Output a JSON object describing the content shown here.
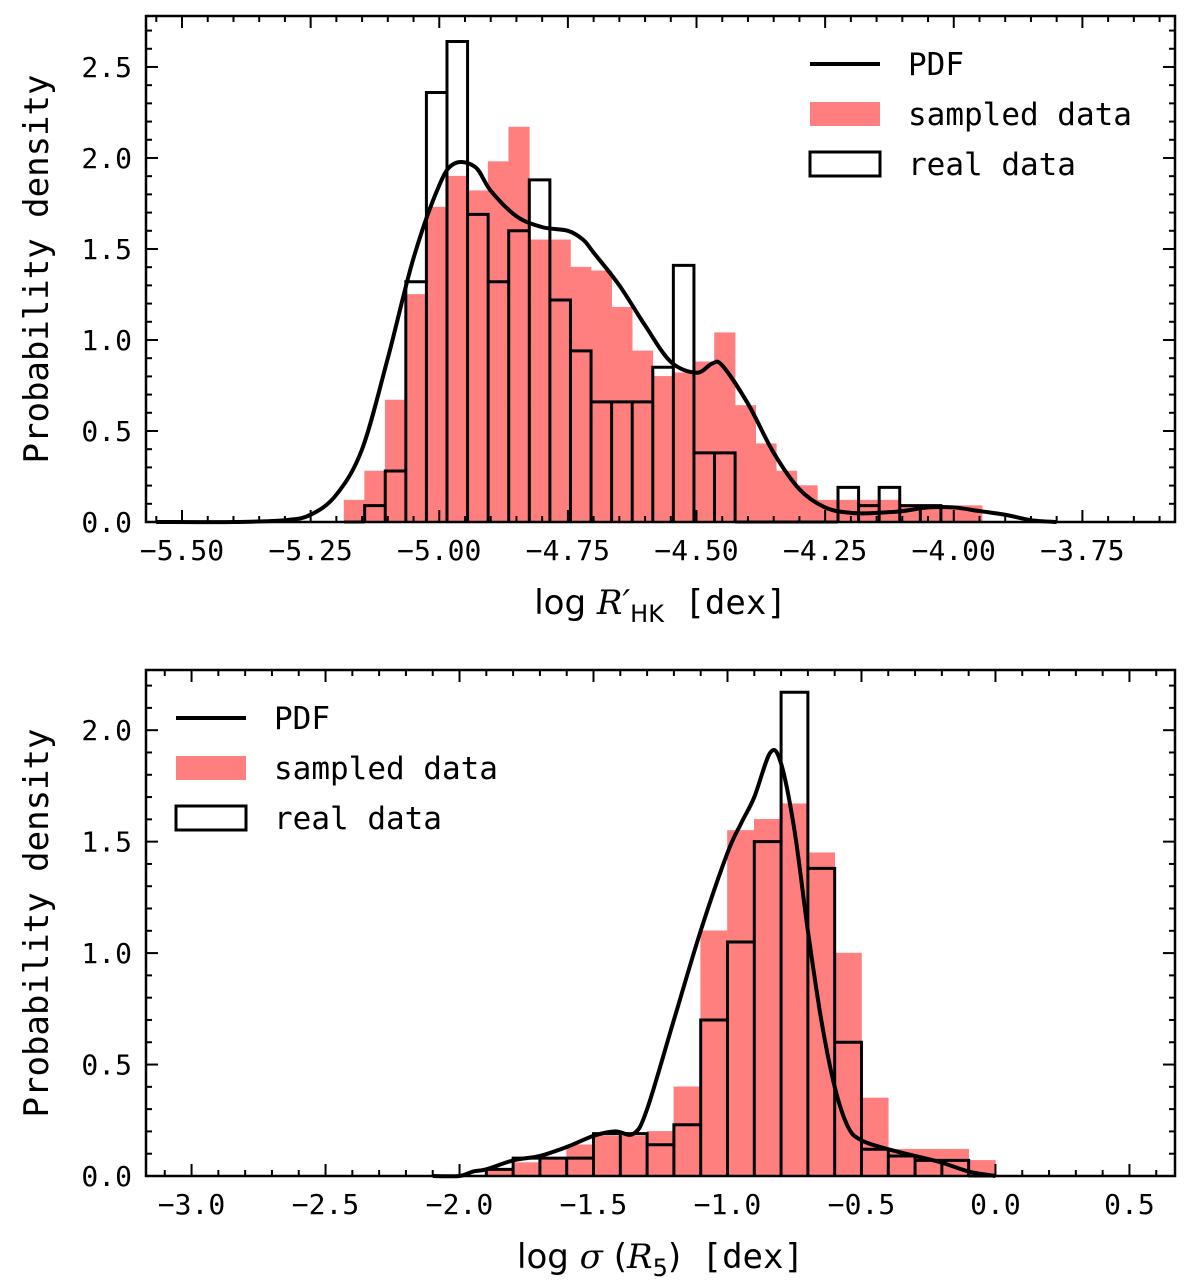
{
  "chart_data": [
    {
      "type": "histogram",
      "xlabel_prefix": "log ",
      "xlabel_math": "R′",
      "xlabel_sub": "HK",
      "xlabel_suffix": "  [dex]",
      "ylabel": "Probability density",
      "xlim": [
        -5.57,
        -3.57
      ],
      "ylim": [
        0,
        2.78
      ],
      "xticks": [
        -5.5,
        -5.25,
        -5.0,
        -4.75,
        -4.5,
        -4.25,
        -4.0,
        -3.75
      ],
      "xtick_labels": [
        "−5.50",
        "−5.25",
        "−5.00",
        "−4.75",
        "−4.50",
        "−4.25",
        "−4.00",
        "−3.75"
      ],
      "yticks": [
        0.0,
        0.5,
        1.0,
        1.5,
        2.0,
        2.5
      ],
      "ytick_labels": [
        "0.0",
        "0.5",
        "1.0",
        "1.5",
        "2.0",
        "2.5"
      ],
      "legend_location": "top-right",
      "legend": {
        "pdf": "PDF",
        "sampled": "sampled data",
        "real": "real data"
      },
      "colors": {
        "sampled": "#ff7f7f",
        "outline": "#000000"
      },
      "bin_start": -5.185,
      "bin_width": 0.04,
      "sampled_values": [
        0.12,
        0.28,
        0.67,
        1.25,
        1.73,
        1.9,
        1.82,
        1.98,
        2.17,
        1.55,
        1.55,
        1.4,
        1.38,
        1.18,
        0.94,
        0.8,
        0.82,
        0.88,
        1.04,
        0.64,
        0.43,
        0.28,
        0.2,
        0.12,
        0.12,
        0.12,
        0.12,
        0.09,
        0.09,
        0.09,
        0.09
      ],
      "real_values": [
        0.0,
        0.09,
        0.28,
        1.32,
        2.36,
        2.64,
        1.69,
        1.32,
        1.6,
        1.88,
        1.22,
        0.94,
        0.66,
        0.66,
        0.66,
        0.85,
        1.41,
        0.38,
        0.38,
        0.0,
        0.0,
        0.0,
        0.0,
        0.0,
        0.19,
        0.09,
        0.19,
        0.09,
        0.09
      ],
      "pdf_x": [
        -5.55,
        -5.4,
        -5.3,
        -5.25,
        -5.2,
        -5.15,
        -5.1,
        -5.05,
        -5.0,
        -4.97,
        -4.93,
        -4.9,
        -4.85,
        -4.8,
        -4.75,
        -4.72,
        -4.7,
        -4.65,
        -4.6,
        -4.55,
        -4.5,
        -4.47,
        -4.45,
        -4.4,
        -4.35,
        -4.3,
        -4.25,
        -4.2,
        -4.15,
        -4.1,
        -4.05,
        -4.0,
        -3.95,
        -3.9,
        -3.85,
        -3.8
      ],
      "pdf_y": [
        0.0,
        0.0,
        0.01,
        0.04,
        0.15,
        0.4,
        0.9,
        1.45,
        1.85,
        1.97,
        1.95,
        1.82,
        1.68,
        1.62,
        1.6,
        1.55,
        1.48,
        1.3,
        1.08,
        0.88,
        0.82,
        0.87,
        0.86,
        0.65,
        0.38,
        0.18,
        0.08,
        0.05,
        0.05,
        0.06,
        0.08,
        0.08,
        0.06,
        0.04,
        0.01,
        0.0
      ]
    },
    {
      "type": "histogram",
      "xlabel_prefix": "log ",
      "xlabel_math": "σ",
      "xlabel_paren_open": " (",
      "xlabel_math2": "R",
      "xlabel_sub": "5",
      "xlabel_paren_close": ")",
      "xlabel_suffix": "  [dex]",
      "ylabel": "Probability density",
      "xlim": [
        -3.17,
        0.67
      ],
      "ylim": [
        0,
        2.27
      ],
      "xticks": [
        -3.0,
        -2.5,
        -2.0,
        -1.5,
        -1.0,
        -0.5,
        0.0,
        0.5
      ],
      "xtick_labels": [
        "−3.0",
        "−2.5",
        "−2.0",
        "−1.5",
        "−1.0",
        "−0.5",
        "0.0",
        "0.5"
      ],
      "yticks": [
        0.0,
        0.5,
        1.0,
        1.5,
        2.0
      ],
      "ytick_labels": [
        "0.0",
        "0.5",
        "1.0",
        "1.5",
        "2.0"
      ],
      "legend_location": "top-left",
      "legend": {
        "pdf": "PDF",
        "sampled": "sampled data",
        "real": "real data"
      },
      "colors": {
        "sampled": "#ff7f7f",
        "outline": "#000000"
      },
      "bin_start": -1.9,
      "bin_width": 0.1,
      "sampled_values": [
        0.03,
        0.06,
        0.08,
        0.14,
        0.18,
        0.18,
        0.2,
        0.4,
        1.1,
        1.55,
        1.6,
        1.67,
        1.45,
        1.0,
        0.35,
        0.12,
        0.12,
        0.12,
        0.07
      ],
      "real_values": [
        0.03,
        0.08,
        0.08,
        0.08,
        0.19,
        0.19,
        0.14,
        0.23,
        0.7,
        1.05,
        1.5,
        2.17,
        1.38,
        0.6,
        0.12,
        0.09,
        0.07,
        0.07,
        0.0
      ],
      "pdf_x": [
        -2.1,
        -2.0,
        -1.95,
        -1.9,
        -1.8,
        -1.7,
        -1.6,
        -1.5,
        -1.42,
        -1.35,
        -1.3,
        -1.2,
        -1.1,
        -1.0,
        -0.95,
        -0.9,
        -0.84,
        -0.8,
        -0.75,
        -0.7,
        -0.65,
        -0.6,
        -0.55,
        -0.5,
        -0.4,
        -0.3,
        -0.2,
        -0.1,
        0.0
      ],
      "pdf_y": [
        0.0,
        0.0,
        0.02,
        0.03,
        0.07,
        0.09,
        0.13,
        0.18,
        0.2,
        0.19,
        0.3,
        0.7,
        1.1,
        1.45,
        1.58,
        1.7,
        1.9,
        1.85,
        1.55,
        1.1,
        0.7,
        0.4,
        0.22,
        0.16,
        0.12,
        0.09,
        0.06,
        0.02,
        0.0
      ]
    }
  ]
}
